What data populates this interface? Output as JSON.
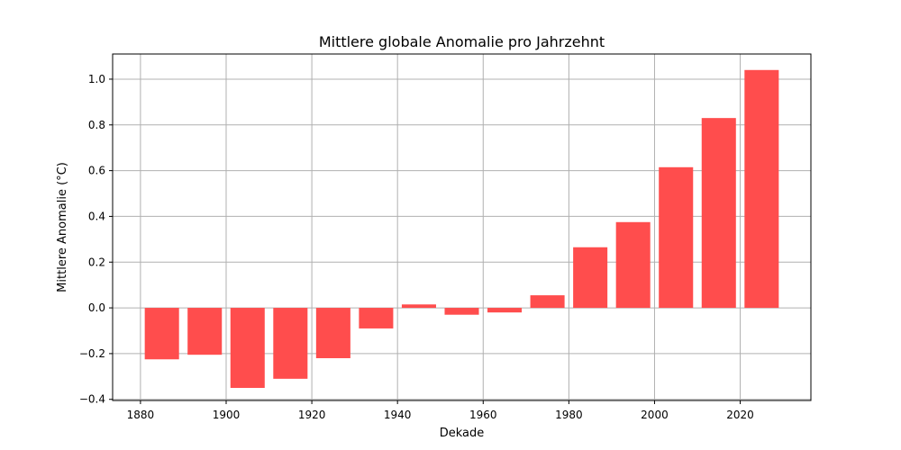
{
  "chart_data": {
    "type": "bar",
    "title": "Mittlere globale Anomalie pro Jahrzehnt",
    "xlabel": "Dekade",
    "ylabel": "Mittlere Anomalie (°C)",
    "x": [
      1885,
      1895,
      1905,
      1915,
      1925,
      1935,
      1945,
      1955,
      1965,
      1975,
      1985,
      1995,
      2005,
      2015,
      2025
    ],
    "values": [
      -0.225,
      -0.205,
      -0.35,
      -0.31,
      -0.22,
      -0.09,
      0.015,
      -0.03,
      -0.02,
      0.055,
      0.265,
      0.375,
      0.615,
      0.83,
      1.04
    ],
    "bar_width": 8,
    "xlim": [
      1873.5,
      2036.5
    ],
    "ylim": [
      -0.405,
      1.11
    ],
    "xticks": [
      1880,
      1900,
      1920,
      1940,
      1960,
      1980,
      2000,
      2020
    ],
    "xtick_labels": [
      "1880",
      "1900",
      "1920",
      "1940",
      "1960",
      "1980",
      "2000",
      "2020"
    ],
    "yticks": [
      -0.4,
      -0.2,
      0.0,
      0.2,
      0.4,
      0.6,
      0.8,
      1.0
    ],
    "ytick_labels": [
      "−0.4",
      "−0.2",
      "0.0",
      "0.2",
      "0.4",
      "0.6",
      "0.8",
      "1.0"
    ],
    "bar_color": "#ff4d4d",
    "grid": true
  }
}
